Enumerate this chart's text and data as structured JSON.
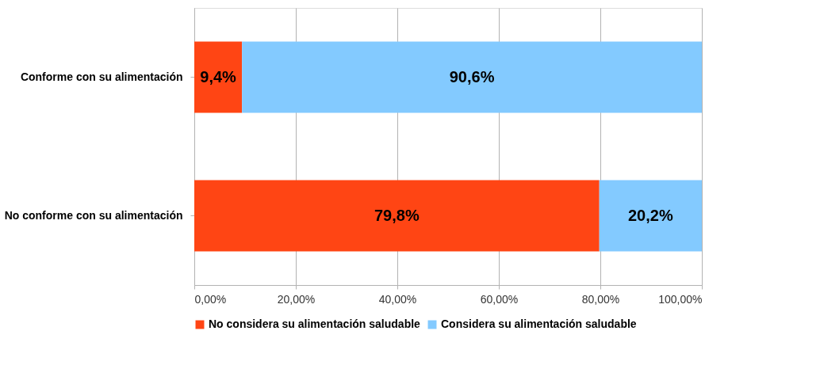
{
  "chart_data": {
    "type": "bar",
    "orientation": "horizontal",
    "stacked": true,
    "categories": [
      "Conforme con su alimentación",
      "No conforme con su alimentación"
    ],
    "series": [
      {
        "name": "No considera su alimentación saludable",
        "color": "#ff4514",
        "values": [
          9.4,
          79.8
        ],
        "value_labels": [
          "9,4%",
          "79,8%"
        ]
      },
      {
        "name": "Considera su alimentación saludable",
        "color": "#83caff",
        "values": [
          90.6,
          20.2
        ],
        "value_labels": [
          "90,6%",
          "20,2%"
        ]
      }
    ],
    "xlim": [
      0,
      100
    ],
    "xticks": [
      {
        "value": 0,
        "label": "0,00%"
      },
      {
        "value": 20,
        "label": "20,00%"
      },
      {
        "value": 40,
        "label": "40,00%"
      },
      {
        "value": 60,
        "label": "60,00%"
      },
      {
        "value": 80,
        "label": "80,00%"
      },
      {
        "value": 100,
        "label": "100,00%"
      }
    ],
    "grid": "x",
    "legend": "bottom"
  }
}
